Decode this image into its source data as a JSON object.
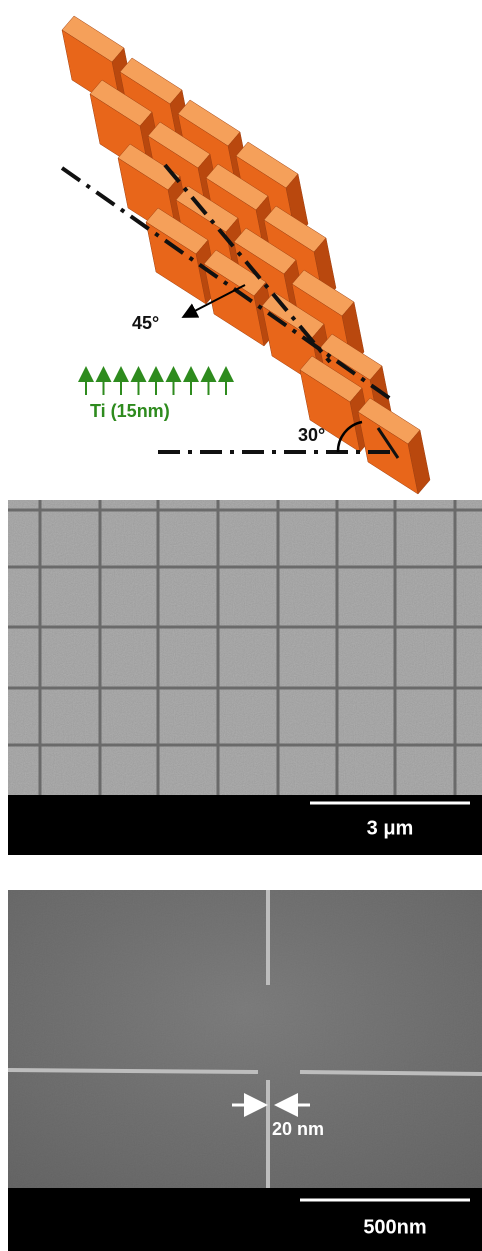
{
  "diagram": {
    "angle_label": "45°",
    "ti_label": "Ti (15nm)",
    "tilt_label": "30°"
  },
  "sem_grid": {
    "scale_label": "3 μm"
  },
  "sem_cross": {
    "gap_label": "20 nm",
    "scale_label": "500nm"
  }
}
